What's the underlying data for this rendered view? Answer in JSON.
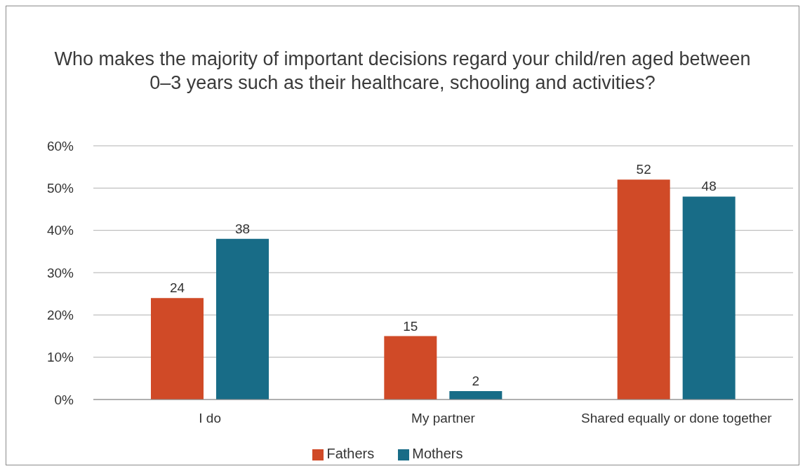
{
  "chart_data": {
    "type": "bar",
    "title": "Who makes the majority of important decisions regard your child/ren aged between 0–3 years such as their healthcare, schooling and activities?",
    "categories": [
      "I do",
      "My partner",
      "Shared equally or done together"
    ],
    "series": [
      {
        "name": "Fathers",
        "color": "#d04a27",
        "values": [
          24,
          15,
          52
        ]
      },
      {
        "name": "Mothers",
        "color": "#186c87",
        "values": [
          38,
          2,
          48
        ]
      }
    ],
    "ylim": [
      0,
      60
    ],
    "yticks": [
      {
        "value": 0,
        "label": "0%"
      },
      {
        "value": 10,
        "label": "10%"
      },
      {
        "value": 20,
        "label": "20%"
      },
      {
        "value": 30,
        "label": "30%"
      },
      {
        "value": 40,
        "label": "40%"
      },
      {
        "value": 50,
        "label": "50%"
      },
      {
        "value": 60,
        "label": "60%"
      }
    ],
    "grid": "y",
    "legend": "bottom",
    "data_labels": true
  }
}
